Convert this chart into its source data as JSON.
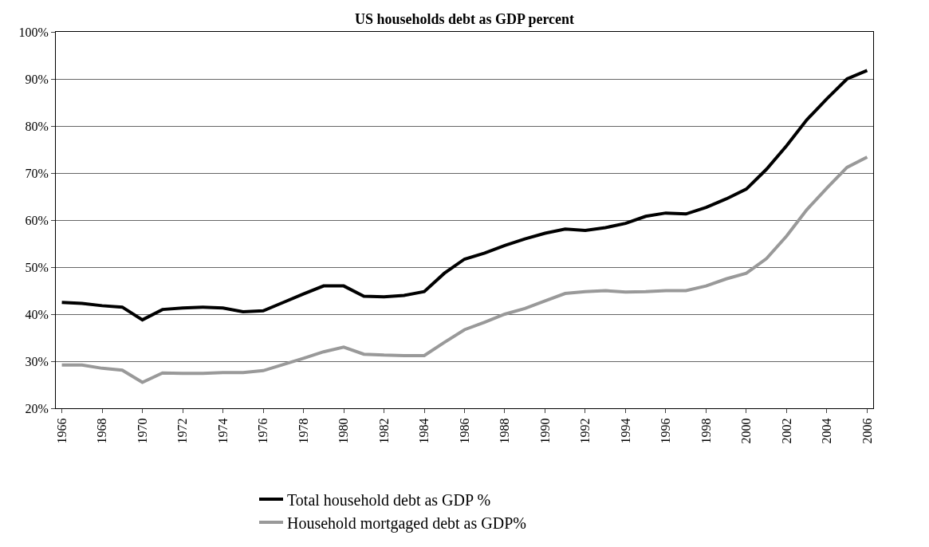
{
  "chart_data": {
    "type": "line",
    "title": "US households debt as GDP percent",
    "x": [
      1966,
      1967,
      1968,
      1969,
      1970,
      1971,
      1972,
      1973,
      1974,
      1975,
      1976,
      1977,
      1978,
      1979,
      1980,
      1981,
      1982,
      1983,
      1984,
      1985,
      1986,
      1987,
      1988,
      1989,
      1990,
      1991,
      1992,
      1993,
      1994,
      1995,
      1996,
      1997,
      1998,
      1999,
      2000,
      2001,
      2002,
      2003,
      2004,
      2005,
      2006
    ],
    "series": [
      {
        "name": "Total household debt as GDP %",
        "color": "#000000",
        "values": [
          42.5,
          42.3,
          41.8,
          41.5,
          38.8,
          41,
          41.3,
          41.5,
          41.3,
          40.5,
          40.7,
          42.5,
          44.3,
          46,
          46,
          43.8,
          43.7,
          44,
          44.8,
          48.7,
          51.7,
          53,
          54.6,
          56,
          57.2,
          58.1,
          57.8,
          58.4,
          59.3,
          60.8,
          61.5,
          61.3,
          62.7,
          64.5,
          66.6,
          70.8,
          75.8,
          81.3,
          85.8,
          90,
          91.8
        ]
      },
      {
        "name": "Household mortgaged debt as GDP%",
        "color": "#999999",
        "values": [
          29.2,
          29.2,
          28.5,
          28.1,
          25.5,
          27.5,
          27.4,
          27.4,
          27.6,
          27.6,
          28,
          29.3,
          30.6,
          32,
          33,
          31.5,
          31.3,
          31.2,
          31.2,
          34,
          36.7,
          38.3,
          40,
          41.2,
          42.8,
          44.4,
          44.8,
          45,
          44.7,
          44.8,
          45,
          45,
          46,
          47.5,
          48.7,
          51.8,
          56.6,
          62.2,
          66.8,
          71.2,
          73.4
        ]
      }
    ],
    "xlim": [
      1965.7,
      2006.3
    ],
    "xticks": [
      1966,
      1968,
      1970,
      1972,
      1974,
      1976,
      1978,
      1980,
      1982,
      1984,
      1986,
      1988,
      1990,
      1992,
      1994,
      1996,
      1998,
      2000,
      2002,
      2004,
      2006
    ],
    "ylim": [
      20,
      100
    ],
    "yticks": [
      {
        "value": 20,
        "label": "20%"
      },
      {
        "value": 30,
        "label": "30%"
      },
      {
        "value": 40,
        "label": "40%"
      },
      {
        "value": 50,
        "label": "50%"
      },
      {
        "value": 60,
        "label": "60%"
      },
      {
        "value": 70,
        "label": "70%"
      },
      {
        "value": 80,
        "label": "80%"
      },
      {
        "value": 90,
        "label": "90%"
      },
      {
        "value": 100,
        "label": "100%"
      }
    ],
    "grid": "y",
    "legend": "bottom",
    "marker": "none",
    "line_style": "solid"
  }
}
